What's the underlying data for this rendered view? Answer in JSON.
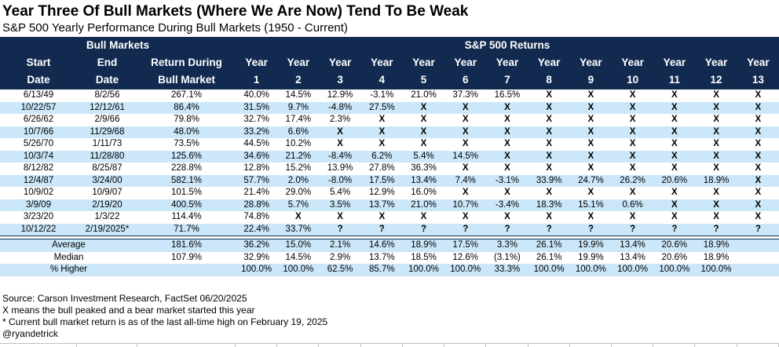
{
  "title": "Year Three Of Bull Markets (Where We Are Now) Tend To Be Weak",
  "subtitle": "S&P 500 Yearly Performance During Bull Markets (1950 - Current)",
  "colors": {
    "header_navy": "#132A50",
    "row_alt_blue": "#CBE7F9",
    "grid_gray": "#BFBFBF",
    "text": "#000000"
  },
  "chart_data": {
    "type": "table",
    "title": "Year Three Of Bull Markets (Where We Are Now) Tend To Be Weak",
    "subtitle": "S&P 500 Yearly Performance During Bull Markets (1950 - Current)",
    "group_headers": [
      {
        "label": "Bull Markets",
        "span": 3,
        "align": "left"
      },
      {
        "label": "S&P 500 Returns",
        "span": 13,
        "align": "center"
      }
    ],
    "columns": [
      {
        "line1": "Start",
        "line2": "Date"
      },
      {
        "line1": "End",
        "line2": "Date"
      },
      {
        "line1": "Return During",
        "line2": "Bull Market"
      },
      {
        "line1": "Year",
        "line2": "1"
      },
      {
        "line1": "Year",
        "line2": "2"
      },
      {
        "line1": "Year",
        "line2": "3"
      },
      {
        "line1": "Year",
        "line2": "4"
      },
      {
        "line1": "Year",
        "line2": "5"
      },
      {
        "line1": "Year",
        "line2": "6"
      },
      {
        "line1": "Year",
        "line2": "7"
      },
      {
        "line1": "Year",
        "line2": "8"
      },
      {
        "line1": "Year",
        "line2": "9"
      },
      {
        "line1": "Year",
        "line2": "10"
      },
      {
        "line1": "Year",
        "line2": "11"
      },
      {
        "line1": "Year",
        "line2": "12"
      },
      {
        "line1": "Year",
        "line2": "13"
      }
    ],
    "rows": [
      {
        "start": "6/13/49",
        "end": "8/2/56",
        "return": "267.1%",
        "years": [
          "40.0%",
          "14.5%",
          "12.9%",
          "-3.1%",
          "21.0%",
          "37.3%",
          "16.5%",
          "X",
          "X",
          "X",
          "X",
          "X",
          "X"
        ]
      },
      {
        "start": "10/22/57",
        "end": "12/12/61",
        "return": "86.4%",
        "years": [
          "31.5%",
          "9.7%",
          "-4.8%",
          "27.5%",
          "X",
          "X",
          "X",
          "X",
          "X",
          "X",
          "X",
          "X",
          "X"
        ]
      },
      {
        "start": "6/26/62",
        "end": "2/9/66",
        "return": "79.8%",
        "years": [
          "32.7%",
          "17.4%",
          "2.3%",
          "X",
          "X",
          "X",
          "X",
          "X",
          "X",
          "X",
          "X",
          "X",
          "X"
        ]
      },
      {
        "start": "10/7/66",
        "end": "11/29/68",
        "return": "48.0%",
        "years": [
          "33.2%",
          "6.6%",
          "X",
          "X",
          "X",
          "X",
          "X",
          "X",
          "X",
          "X",
          "X",
          "X",
          "X"
        ]
      },
      {
        "start": "5/26/70",
        "end": "1/11/73",
        "return": "73.5%",
        "years": [
          "44.5%",
          "10.2%",
          "X",
          "X",
          "X",
          "X",
          "X",
          "X",
          "X",
          "X",
          "X",
          "X",
          "X"
        ]
      },
      {
        "start": "10/3/74",
        "end": "11/28/80",
        "return": "125.6%",
        "years": [
          "34.6%",
          "21.2%",
          "-8.4%",
          "6.2%",
          "5.4%",
          "14.5%",
          "X",
          "X",
          "X",
          "X",
          "X",
          "X",
          "X"
        ]
      },
      {
        "start": "8/12/82",
        "end": "8/25/87",
        "return": "228.8%",
        "years": [
          "12.8%",
          "15.2%",
          "13.9%",
          "27.8%",
          "36.3%",
          "X",
          "X",
          "X",
          "X",
          "X",
          "X",
          "X",
          "X"
        ]
      },
      {
        "start": "12/4/87",
        "end": "3/24/00",
        "return": "582.1%",
        "years": [
          "57.7%",
          "2.0%",
          "-8.0%",
          "17.5%",
          "13.4%",
          "7.4%",
          "-3.1%",
          "33.9%",
          "24.7%",
          "26.2%",
          "20.6%",
          "18.9%",
          "X"
        ]
      },
      {
        "start": "10/9/02",
        "end": "10/9/07",
        "return": "101.5%",
        "years": [
          "21.4%",
          "29.0%",
          "5.4%",
          "12.9%",
          "16.0%",
          "X",
          "X",
          "X",
          "X",
          "X",
          "X",
          "X",
          "X"
        ]
      },
      {
        "start": "3/9/09",
        "end": "2/19/20",
        "return": "400.5%",
        "years": [
          "28.8%",
          "5.7%",
          "3.5%",
          "13.7%",
          "21.0%",
          "10.7%",
          "-3.4%",
          "18.3%",
          "15.1%",
          "0.6%",
          "X",
          "X",
          "X"
        ]
      },
      {
        "start": "3/23/20",
        "end": "1/3/22",
        "return": "114.4%",
        "years": [
          "74.8%",
          "X",
          "X",
          "X",
          "X",
          "X",
          "X",
          "X",
          "X",
          "X",
          "X",
          "X",
          "X"
        ]
      },
      {
        "start": "10/12/22",
        "end": "2/19/2025*",
        "return": "71.7%",
        "years": [
          "22.4%",
          "33.7%",
          "?",
          "?",
          "?",
          "?",
          "?",
          "?",
          "?",
          "?",
          "?",
          "?",
          "?"
        ]
      }
    ],
    "summary_rows": [
      {
        "label": "Average",
        "return": "181.6%",
        "years": [
          "36.2%",
          "15.0%",
          "2.1%",
          "14.6%",
          "18.9%",
          "17.5%",
          "3.3%",
          "26.1%",
          "19.9%",
          "13.4%",
          "20.6%",
          "18.9%",
          ""
        ]
      },
      {
        "label": "Median",
        "return": "107.9%",
        "years": [
          "32.9%",
          "14.5%",
          "2.9%",
          "13.7%",
          "18.5%",
          "12.6%",
          "(3.1%)",
          "26.1%",
          "19.9%",
          "13.4%",
          "20.6%",
          "18.9%",
          ""
        ]
      },
      {
        "label": "% Higher",
        "return": "",
        "years": [
          "100.0%",
          "100.0%",
          "62.5%",
          "85.7%",
          "100.0%",
          "100.0%",
          "33.3%",
          "100.0%",
          "100.0%",
          "100.0%",
          "100.0%",
          "100.0%",
          ""
        ]
      }
    ]
  },
  "footnotes": [
    "Source: Carson Investment Research, FactSet 06/20/2025",
    "X means the bull peaked and a bear market started this year",
    "* Current bull market return is as of the last all-time high on February 19, 2025",
    "@ryandetrick"
  ]
}
